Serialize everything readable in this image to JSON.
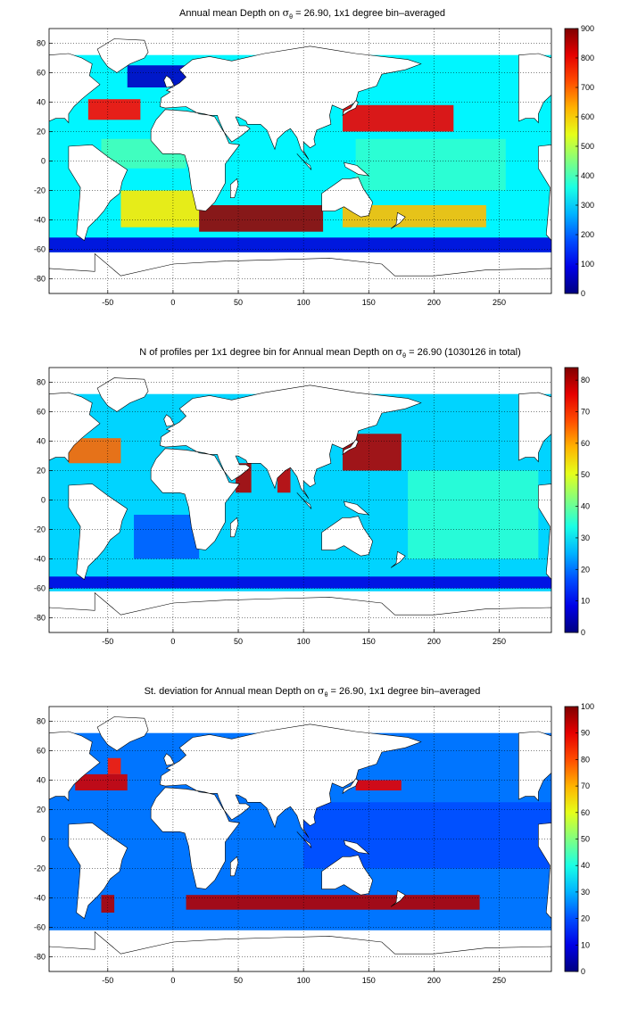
{
  "panels": [
    {
      "title_pre": "Annual mean Depth on ",
      "title_sym": "σ",
      "title_sub": "θ",
      "title_post": " = 26.90, 1x1 degree bin–averaged",
      "colorbar_ticks": [
        "0",
        "100",
        "200",
        "300",
        "400",
        "500",
        "600",
        "700",
        "800",
        "900"
      ]
    },
    {
      "title_pre": "N of profiles per 1x1 degree bin for Annual mean Depth on ",
      "title_sym": "σ",
      "title_sub": "θ",
      "title_post": " = 26.90 (1030126 in total)",
      "colorbar_ticks": [
        "0",
        "10",
        "20",
        "30",
        "40",
        "50",
        "60",
        "70",
        "80"
      ]
    },
    {
      "title_pre": "St. deviation for Annual mean Depth on ",
      "title_sym": "σ",
      "title_sub": "θ",
      "title_post": " = 26.90, 1x1 degree bin–averaged",
      "colorbar_ticks": [
        "0",
        "10",
        "20",
        "30",
        "40",
        "50",
        "60",
        "70",
        "80",
        "90",
        "100"
      ]
    }
  ],
  "chart_data": [
    {
      "type": "heatmap",
      "title": "Annual mean Depth on σθ = 26.90, 1x1 degree bin–averaged",
      "xlim": [
        -95,
        290
      ],
      "ylim": [
        -90,
        90
      ],
      "xticks": [
        -50,
        0,
        50,
        100,
        150,
        200,
        250
      ],
      "yticks": [
        -80,
        -60,
        -40,
        -20,
        0,
        20,
        40,
        60,
        80
      ],
      "grid": true,
      "colormap": "jet",
      "clim": [
        0,
        900
      ],
      "colorbar_ticks": [
        0,
        100,
        200,
        300,
        400,
        500,
        600,
        700,
        800,
        900
      ],
      "regions": [
        {
          "lon": [
            -35,
            10
          ],
          "lat": [
            50,
            65
          ],
          "value": 60
        },
        {
          "lon": [
            -65,
            -25
          ],
          "lat": [
            28,
            42
          ],
          "value": 780
        },
        {
          "lon": [
            -55,
            10
          ],
          "lat": [
            -5,
            15
          ],
          "value": 400
        },
        {
          "lon": [
            -40,
            20
          ],
          "lat": [
            -45,
            -20
          ],
          "value": 580
        },
        {
          "lon": [
            20,
            115
          ],
          "lat": [
            -48,
            -30
          ],
          "value": 880
        },
        {
          "lon": [
            130,
            215
          ],
          "lat": [
            20,
            38
          ],
          "value": 800
        },
        {
          "lon": [
            140,
            255
          ],
          "lat": [
            -20,
            15
          ],
          "value": 380
        },
        {
          "lon": [
            -95,
            290
          ],
          "lat": [
            -62,
            -52
          ],
          "value": 80
        },
        {
          "lon": [
            130,
            240
          ],
          "lat": [
            -45,
            -30
          ],
          "value": 620
        }
      ]
    },
    {
      "type": "heatmap",
      "title": "N of profiles per 1x1 degree bin for Annual mean Depth on σθ = 26.90 (1030126 in total)",
      "xlim": [
        -95,
        290
      ],
      "ylim": [
        -90,
        90
      ],
      "xticks": [
        -50,
        0,
        50,
        100,
        150,
        200,
        250
      ],
      "yticks": [
        -80,
        -60,
        -40,
        -20,
        0,
        20,
        40,
        60,
        80
      ],
      "grid": true,
      "colormap": "jet",
      "clim": [
        0,
        84
      ],
      "colorbar_ticks": [
        0,
        10,
        20,
        30,
        40,
        50,
        60,
        70,
        80
      ],
      "regions": [
        {
          "lon": [
            130,
            175
          ],
          "lat": [
            20,
            45
          ],
          "value": 80
        },
        {
          "lon": [
            -80,
            -40
          ],
          "lat": [
            25,
            42
          ],
          "value": 65
        },
        {
          "lon": [
            48,
            60
          ],
          "lat": [
            5,
            25
          ],
          "value": 80
        },
        {
          "lon": [
            80,
            90
          ],
          "lat": [
            5,
            22
          ],
          "value": 78
        },
        {
          "lon": [
            -95,
            290
          ],
          "lat": [
            -60,
            -52
          ],
          "value": 8
        },
        {
          "lon": [
            -30,
            20
          ],
          "lat": [
            -40,
            -10
          ],
          "value": 18
        },
        {
          "lon": [
            180,
            280
          ],
          "lat": [
            -40,
            20
          ],
          "value": 35
        }
      ]
    },
    {
      "type": "heatmap",
      "title": "St. deviation for Annual mean Depth on σθ = 26.90, 1x1 degree bin–averaged",
      "xlim": [
        -95,
        290
      ],
      "ylim": [
        -90,
        90
      ],
      "xticks": [
        -50,
        0,
        50,
        100,
        150,
        200,
        250
      ],
      "yticks": [
        -80,
        -60,
        -40,
        -20,
        0,
        20,
        40,
        60,
        80
      ],
      "grid": true,
      "colormap": "jet",
      "clim": [
        0,
        100
      ],
      "colorbar_ticks": [
        0,
        10,
        20,
        30,
        40,
        50,
        60,
        70,
        80,
        90,
        100
      ],
      "regions": [
        {
          "lon": [
            -75,
            -35
          ],
          "lat": [
            33,
            44
          ],
          "value": 92
        },
        {
          "lon": [
            -50,
            -40
          ],
          "lat": [
            44,
            55
          ],
          "value": 85
        },
        {
          "lon": [
            140,
            175
          ],
          "lat": [
            33,
            40
          ],
          "value": 90
        },
        {
          "lon": [
            10,
            235
          ],
          "lat": [
            -48,
            -38
          ],
          "value": 95
        },
        {
          "lon": [
            -55,
            -45
          ],
          "lat": [
            -50,
            -38
          ],
          "value": 95
        },
        {
          "lon": [
            100,
            290
          ],
          "lat": [
            -20,
            25
          ],
          "value": 20
        }
      ]
    }
  ]
}
